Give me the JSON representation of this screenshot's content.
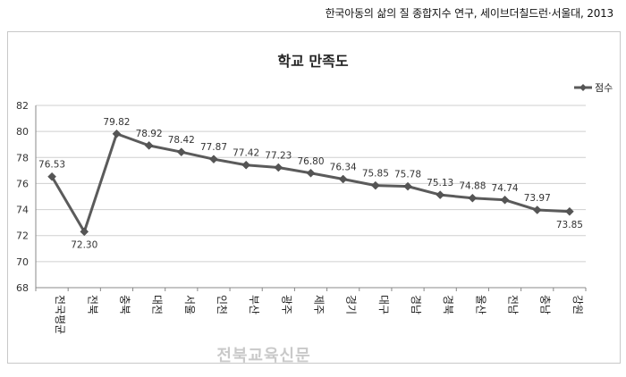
{
  "source": "한국아동의 삶의 질 종합지수 연구, 세이브더칠드런·서울대, 2013",
  "watermark": "전북교육신문",
  "chart_data": {
    "type": "line",
    "title": "학교 만족도",
    "categories": [
      "전국평균",
      "전북",
      "충북",
      "대전",
      "서울",
      "인천",
      "부산",
      "광주",
      "제주",
      "경기",
      "대구",
      "경남",
      "경북",
      "울산",
      "전남",
      "충남",
      "강원"
    ],
    "series": [
      {
        "name": "점수",
        "values": [
          76.53,
          72.3,
          79.82,
          78.92,
          78.42,
          77.87,
          77.42,
          77.23,
          76.8,
          76.34,
          75.85,
          75.78,
          75.13,
          74.88,
          74.74,
          73.97,
          73.85
        ],
        "color": "#5b5b5b"
      }
    ],
    "value_labels": [
      "76.53",
      "72.30",
      "79.82",
      "78.92",
      "78.42",
      "77.87",
      "77.42",
      "77.23",
      "76.80",
      "76.34",
      "75.85",
      "75.78",
      "75.13",
      "74.88",
      "74.74",
      "73.97",
      "73.85"
    ],
    "ylim": [
      68,
      82
    ],
    "yticks": [
      "68",
      "70",
      "72",
      "74",
      "76",
      "78",
      "80",
      "82"
    ],
    "xlabel": "",
    "ylabel": "",
    "grid": true,
    "legend": "top-right"
  }
}
